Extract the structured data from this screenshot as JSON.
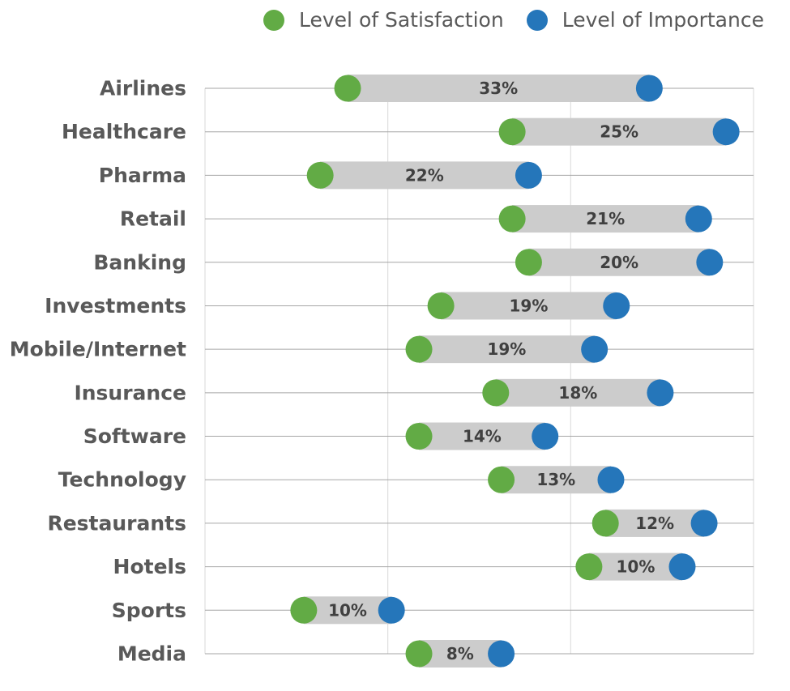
{
  "chart_data": {
    "type": "dumbbell",
    "xlim": [
      0,
      100
    ],
    "grid": true,
    "legend_position": "top-right",
    "series": [
      {
        "name": "Level of Satisfaction",
        "color": "#62ab45"
      },
      {
        "name": "Level of Importance",
        "color": "#2576ba"
      }
    ],
    "categories": [
      "Airlines",
      "Healthcare",
      "Pharma",
      "Retail",
      "Banking",
      "Investments",
      "Mobile/Internet",
      "Insurance",
      "Software",
      "Technology",
      "Restaurants",
      "Hotels",
      "Sports",
      "Media"
    ],
    "satisfaction": [
      26,
      56,
      21,
      56,
      59,
      43,
      39,
      53,
      39,
      54,
      73,
      70,
      18,
      39
    ],
    "importance": [
      81,
      95,
      59,
      90,
      92,
      75,
      71,
      83,
      62,
      74,
      91,
      87,
      34,
      54
    ],
    "gap_labels": [
      "33%",
      "25%",
      "22%",
      "21%",
      "20%",
      "19%",
      "19%",
      "18%",
      "14%",
      "13%",
      "12%",
      "10%",
      "10%",
      "8%"
    ]
  }
}
